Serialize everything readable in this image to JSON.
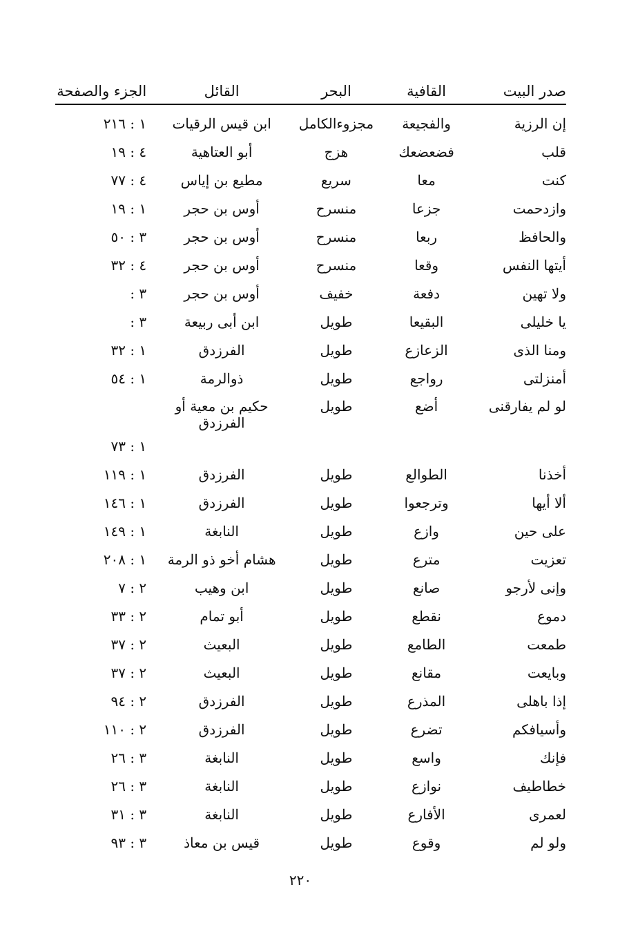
{
  "headers": [
    "صدر البيت",
    "القافية",
    "البحر",
    "القائل",
    "الجزء والصفحة"
  ],
  "rows": [
    [
      "إن الرزية",
      "والفجيعة",
      "مجزوءالكامل",
      "ابن قيس الرقيات",
      "١ : ٢١٦"
    ],
    [
      "قلب",
      "فضعضعك",
      "هزج",
      "أبو العتاهية",
      "٤ : ١٩"
    ],
    [
      "كنت",
      "معا",
      "سريع",
      "مطيع بن إياس",
      "٤ : ٧٧"
    ],
    [
      "وازدحمت",
      "جزعا",
      "منسرح",
      "أوس بن حجر",
      "١ : ١٩"
    ],
    [
      "والحافظ",
      "ربعا",
      "منسرح",
      "أوس بن حجر",
      "٣ : ٥٠"
    ],
    [
      "أيتها النفس",
      "وقعا",
      "منسرح",
      "أوس بن حجر",
      "٤ : ٣٢"
    ],
    [
      "ولا تهين",
      "دفعة",
      "خفيف",
      "أوس بن حجر",
      "٣ :"
    ],
    [
      "يا خليلى",
      "البقيعا",
      "طويل",
      "ابن أبى ربيعة",
      "٣ :"
    ],
    [
      "ومنا الذى",
      "الزعازع",
      "طويل",
      "الفرزدق",
      "١ : ٣٢"
    ],
    [
      "أمنزلتى",
      "رواجع",
      "طويل",
      "ذوالرمة",
      "١ : ٥٤"
    ],
    [
      "لو لم يفارقنى",
      "أضع",
      "طويل",
      "حكيم بن معية أو الفرزدق",
      "١ : ٧٣"
    ],
    [
      "أخذنا",
      "الطوالع",
      "طويل",
      "الفرزدق",
      "١ : ١١٩"
    ],
    [
      "ألا أيها",
      "وترجعوا",
      "طويل",
      "الفرزدق",
      "١ : ١٤٦"
    ],
    [
      "على حين",
      "وازع",
      "طويل",
      "النابغة",
      "١ : ١٤٩"
    ],
    [
      "تعزيت",
      "مترع",
      "طويل",
      "هشام أخو ذو الرمة",
      "١ : ٢٠٨"
    ],
    [
      "وإنى لأرجو",
      "صانع",
      "طويل",
      "ابن وهيب",
      "٢ : ٧"
    ],
    [
      "دموع",
      "نقطع",
      "طويل",
      "أبو تمام",
      "٢ : ٣٣"
    ],
    [
      "طمعت",
      "الطامع",
      "طويل",
      "البعيث",
      "٢ : ٣٧"
    ],
    [
      "وبايعت",
      "مقانع",
      "طويل",
      "البعيث",
      "٢ : ٣٧"
    ],
    [
      "إذا باهلى",
      "المذرع",
      "طويل",
      "الفرزدق",
      "٢ : ٩٤"
    ],
    [
      "وأسيافكم",
      "تضرع",
      "طويل",
      "الفرزدق",
      "٢ : ١١٠"
    ],
    [
      "فإنك",
      "واسع",
      "طويل",
      "النابغة",
      "٣ : ٢٦"
    ],
    [
      "خطاطيف",
      "نوازع",
      "طويل",
      "النابغة",
      "٣ : ٢٦"
    ],
    [
      "لعمرى",
      "الأفارع",
      "طويل",
      "النابغة",
      "٣ : ٣١"
    ],
    [
      "ولو لم",
      "وقوع",
      "طويل",
      "قيس بن معاذ",
      "٣ : ٩٣"
    ]
  ],
  "page_number": "٢٢٠"
}
